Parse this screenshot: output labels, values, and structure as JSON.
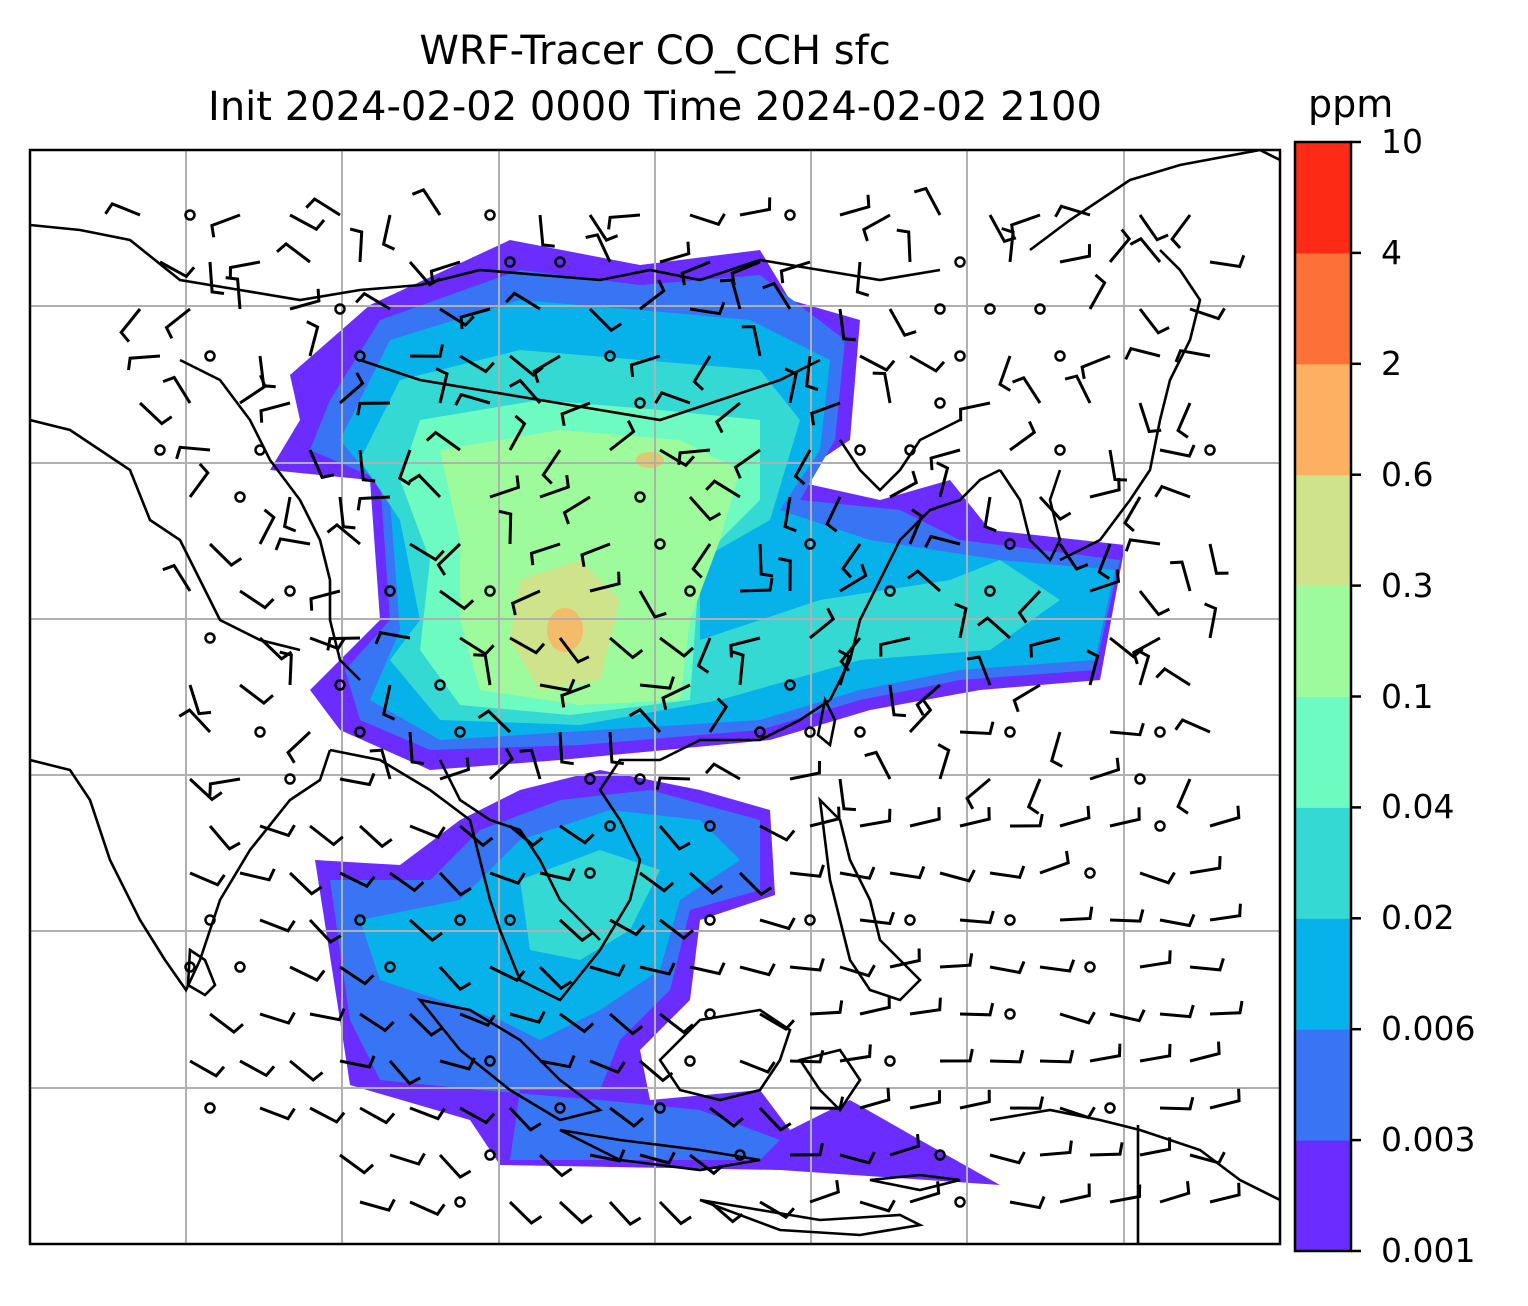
{
  "title": {
    "line1": "WRF-Tracer CO_CCH sfc",
    "line2": "Init 2024-02-02 0000 Time 2024-02-02 2100"
  },
  "colorbar": {
    "units": "ppm",
    "ticks": [
      "0.001",
      "0.003",
      "0.006",
      "0.02",
      "0.04",
      "0.1",
      "0.3",
      "0.6",
      "2",
      "4",
      "10"
    ],
    "colors": [
      "#6a2cff",
      "#3775f5",
      "#07b1ea",
      "#35d9d4",
      "#6dfbc1",
      "#9dfb9b",
      "#cfe38b",
      "#fdb062",
      "#fd7038",
      "#fd2a15"
    ]
  },
  "map": {
    "features": [
      "coastlines",
      "country-borders",
      "gridlines",
      "wind-barbs",
      "co-concentration-field"
    ],
    "field": "CO_CCH",
    "level": "sfc",
    "gridline_color": "#b0b0b0"
  }
}
